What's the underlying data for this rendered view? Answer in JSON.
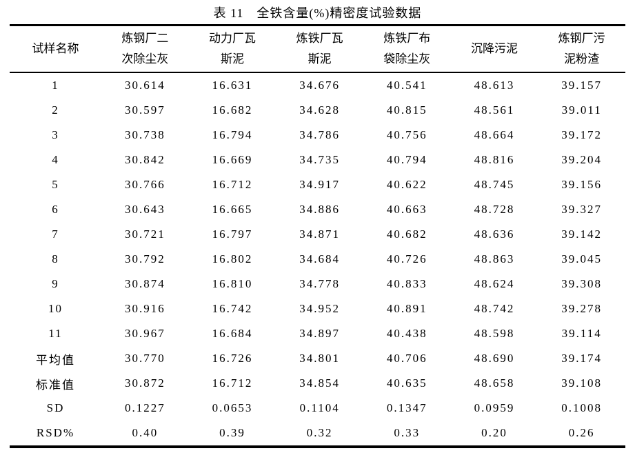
{
  "title": "表 11　全铁含量(%)精密度试验数据",
  "table": {
    "row_header_label": "试样名称",
    "columns": [
      "炼钢厂二次除尘灰",
      "动力厂瓦斯泥",
      "炼铁厂瓦斯泥",
      "炼铁厂布袋除尘灰",
      "沉降污泥",
      "炼钢厂污泥粉渣"
    ],
    "rows": [
      {
        "label": "1",
        "values": [
          "30.614",
          "16.631",
          "34.676",
          "40.541",
          "48.613",
          "39.157"
        ]
      },
      {
        "label": "2",
        "values": [
          "30.597",
          "16.682",
          "34.628",
          "40.815",
          "48.561",
          "39.011"
        ]
      },
      {
        "label": "3",
        "values": [
          "30.738",
          "16.794",
          "34.786",
          "40.756",
          "48.664",
          "39.172"
        ]
      },
      {
        "label": "4",
        "values": [
          "30.842",
          "16.669",
          "34.735",
          "40.794",
          "48.816",
          "39.204"
        ]
      },
      {
        "label": "5",
        "values": [
          "30.766",
          "16.712",
          "34.917",
          "40.622",
          "48.745",
          "39.156"
        ]
      },
      {
        "label": "6",
        "values": [
          "30.643",
          "16.665",
          "34.886",
          "40.663",
          "48.728",
          "39.327"
        ]
      },
      {
        "label": "7",
        "values": [
          "30.721",
          "16.797",
          "34.871",
          "40.682",
          "48.636",
          "39.142"
        ]
      },
      {
        "label": "8",
        "values": [
          "30.792",
          "16.802",
          "34.684",
          "40.726",
          "48.863",
          "39.045"
        ]
      },
      {
        "label": "9",
        "values": [
          "30.874",
          "16.810",
          "34.778",
          "40.833",
          "48.624",
          "39.308"
        ]
      },
      {
        "label": "10",
        "values": [
          "30.916",
          "16.742",
          "34.952",
          "40.891",
          "48.742",
          "39.278"
        ]
      },
      {
        "label": "11",
        "values": [
          "30.967",
          "16.684",
          "34.897",
          "40.438",
          "48.598",
          "39.114"
        ]
      },
      {
        "label": "平均值",
        "values": [
          "30.770",
          "16.726",
          "34.801",
          "40.706",
          "48.690",
          "39.174"
        ]
      },
      {
        "label": "标准值",
        "values": [
          "30.872",
          "16.712",
          "34.854",
          "40.635",
          "48.658",
          "39.108"
        ]
      },
      {
        "label": "SD",
        "values": [
          "0.1227",
          "0.0653",
          "0.1104",
          "0.1347",
          "0.0959",
          "0.1008"
        ]
      },
      {
        "label": "RSD%",
        "values": [
          "0.40",
          "0.39",
          "0.32",
          "0.33",
          "0.20",
          "0.26"
        ]
      }
    ]
  }
}
